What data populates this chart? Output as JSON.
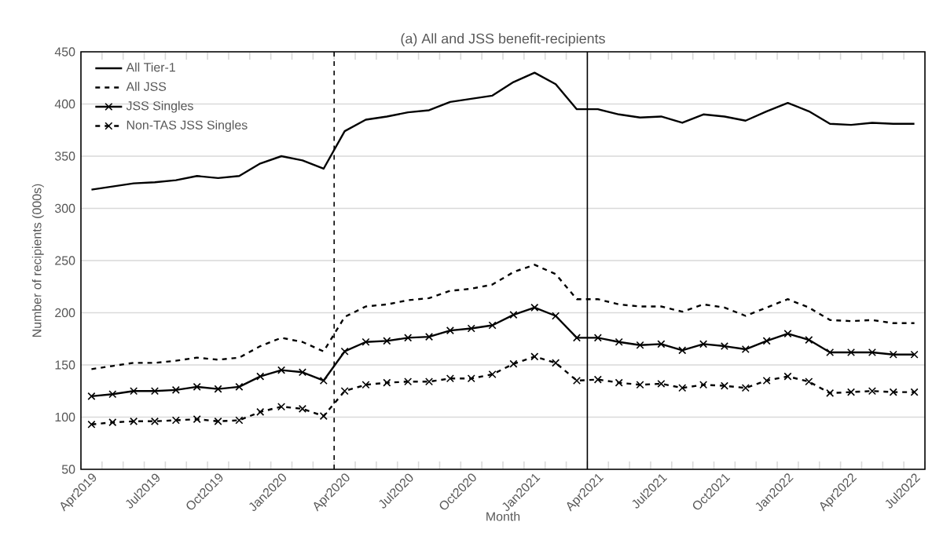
{
  "chart_data": {
    "type": "line",
    "title": "(a) All and JSS benefit-recipients",
    "xlabel": "Month",
    "ylabel": "Number of recipients (000s)",
    "categories": [
      "Apr2019",
      null,
      null,
      "Jul2019",
      null,
      null,
      "Oct2019",
      null,
      null,
      "Jan2020",
      null,
      null,
      "Apr2020",
      null,
      null,
      "Jul2020",
      null,
      null,
      "Oct2020",
      null,
      null,
      "Jan2021",
      null,
      null,
      "Apr2021",
      null,
      null,
      "Jul2021",
      null,
      null,
      "Oct2021",
      null,
      null,
      "Jan2022",
      null,
      null,
      "Apr2022",
      null,
      null,
      "Jul2022"
    ],
    "series": [
      {
        "name": "All Tier-1",
        "color": "#000000",
        "line_style": "solid",
        "marker": "none",
        "values": [
          318,
          321,
          324,
          325,
          327,
          331,
          329,
          331,
          343,
          350,
          346,
          338,
          374,
          385,
          388,
          392,
          394,
          402,
          405,
          408,
          421,
          430,
          419,
          395,
          395,
          390,
          387,
          388,
          382,
          390,
          388,
          384,
          393,
          401,
          393,
          381,
          380,
          382,
          381,
          381
        ]
      },
      {
        "name": "All JSS",
        "color": "#000000",
        "line_style": "dashed",
        "marker": "none",
        "values": [
          146,
          149,
          152,
          152,
          154,
          157,
          155,
          157,
          168,
          176,
          172,
          163,
          196,
          206,
          208,
          212,
          214,
          221,
          223,
          227,
          239,
          246,
          237,
          213,
          213,
          208,
          206,
          206,
          201,
          208,
          205,
          197,
          205,
          213,
          205,
          193,
          192,
          193,
          190,
          190
        ]
      },
      {
        "name": "JSS Singles",
        "color": "#000000",
        "line_style": "solid",
        "marker": "cross",
        "values": [
          120,
          122,
          125,
          125,
          126,
          129,
          127,
          129,
          139,
          145,
          143,
          135,
          163,
          172,
          173,
          176,
          177,
          183,
          185,
          188,
          198,
          205,
          197,
          176,
          176,
          172,
          169,
          170,
          164,
          170,
          168,
          165,
          173,
          180,
          174,
          162,
          162,
          162,
          160,
          160
        ]
      },
      {
        "name": "Non-TAS JSS Singles",
        "color": "#000000",
        "line_style": "dashed",
        "marker": "cross",
        "values": [
          93,
          95,
          96,
          96,
          97,
          98,
          96,
          97,
          105,
          110,
          108,
          101,
          125,
          131,
          133,
          134,
          134,
          137,
          137,
          141,
          151,
          158,
          152,
          135,
          136,
          133,
          131,
          132,
          128,
          131,
          130,
          128,
          135,
          139,
          134,
          123,
          124,
          125,
          124,
          124
        ]
      }
    ],
    "ylim": [
      50,
      450
    ],
    "yticks": [
      50,
      100,
      150,
      200,
      250,
      300,
      350,
      400,
      450
    ],
    "grid": "y",
    "legend": "top left",
    "ref_lines": [
      {
        "axis": "x",
        "value": "Apr2020",
        "color": "#000000",
        "line_style": "dashed"
      },
      {
        "axis": "x",
        "value": "Apr2021",
        "color": "#000000",
        "line_style": "solid"
      }
    ]
  }
}
